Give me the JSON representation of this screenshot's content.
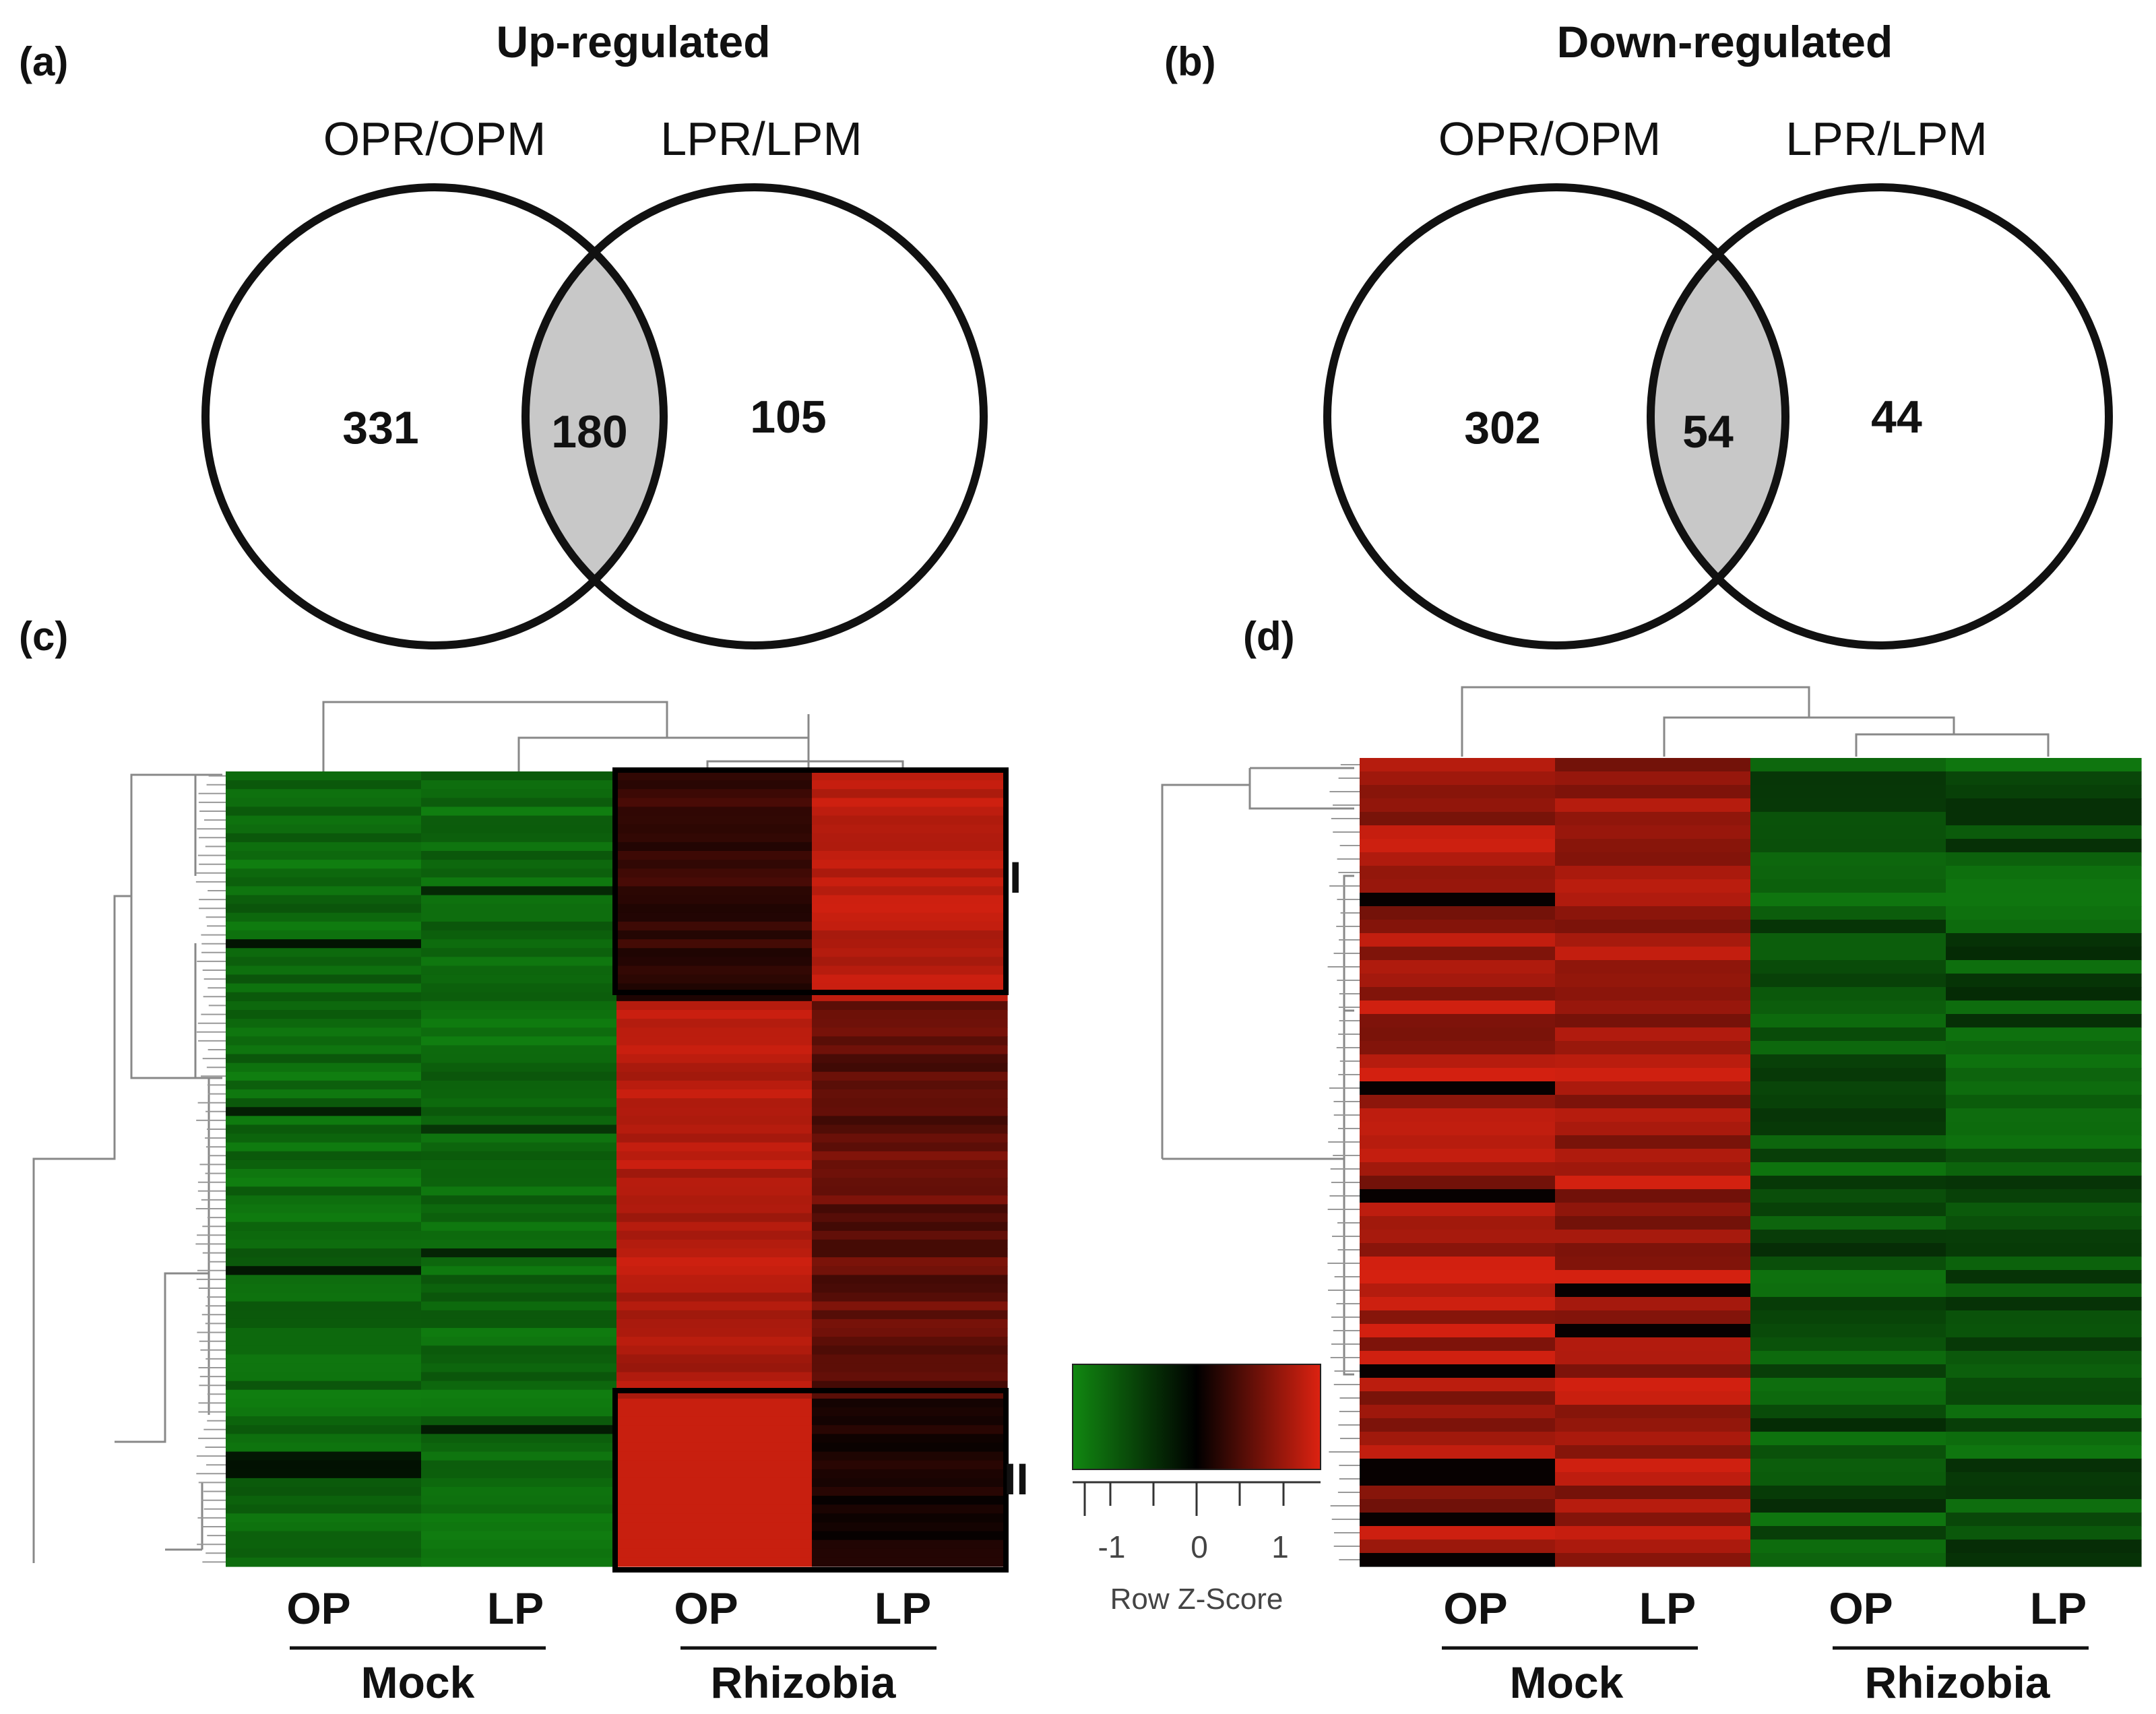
{
  "panels": {
    "a": {
      "label": "(a)",
      "title": "Up-regulated",
      "set_left": "OPR/OPM",
      "set_right": "LPR/LPM",
      "only_left": "331",
      "overlap": "180",
      "only_right": "105"
    },
    "b": {
      "label": "(b)",
      "title": "Down-regulated",
      "set_left": "OPR/OPM",
      "set_right": "LPR/LPM",
      "only_left": "302",
      "overlap": "54",
      "only_right": "44"
    },
    "c": {
      "label": "(c)",
      "columns": [
        "OP",
        "LP",
        "OP",
        "LP"
      ],
      "groups": [
        "Mock",
        "Rhizobia"
      ],
      "clusters": [
        "I",
        "II"
      ]
    },
    "d": {
      "label": "(d)",
      "columns": [
        "OP",
        "LP",
        "OP",
        "LP"
      ],
      "groups": [
        "Mock",
        "Rhizobia"
      ]
    }
  },
  "color_key": {
    "title": "Row Z-Score",
    "ticks": [
      "-1",
      "0",
      "1"
    ],
    "low_color": "#118811",
    "mid_color": "#000000",
    "high_color": "#dd2211"
  },
  "colors": {
    "overlap_fill": "#c8c8c8",
    "outline": "#111111"
  }
}
